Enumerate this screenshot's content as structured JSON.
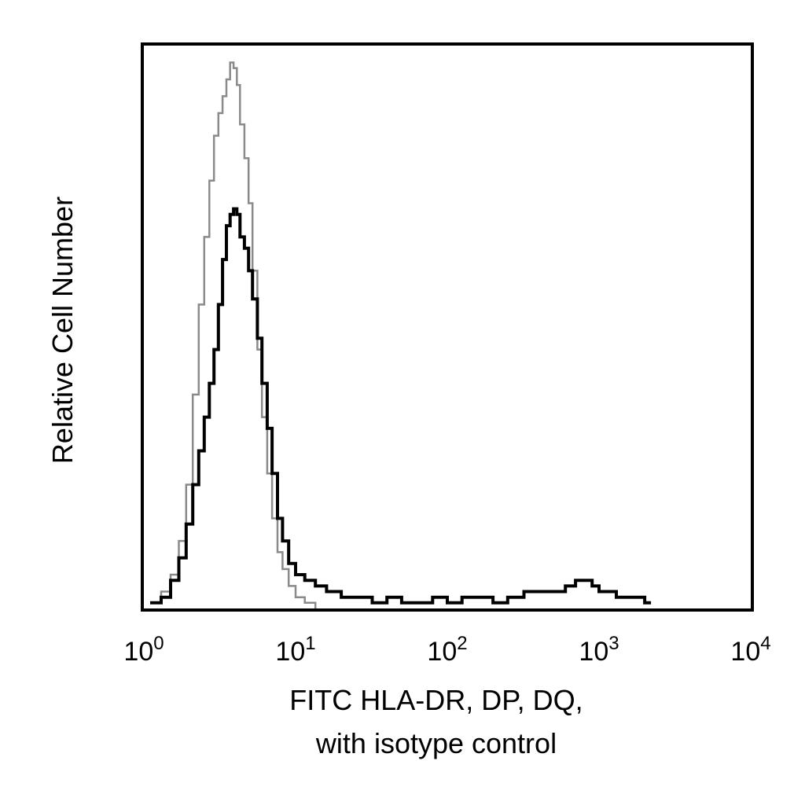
{
  "chart_data": {
    "type": "histogram",
    "title": "",
    "xlabel_lines": [
      "FITC HLA-DR, DP, DQ,",
      "with isotype control"
    ],
    "ylabel": "Relative Cell Number",
    "x_scale": "log",
    "xlim": [
      1,
      10000
    ],
    "ylim": [
      0,
      100
    ],
    "x_ticks": [
      {
        "value": 1,
        "base": "10",
        "exp": "0"
      },
      {
        "value": 10,
        "base": "10",
        "exp": "1"
      },
      {
        "value": 100,
        "base": "10",
        "exp": "2"
      },
      {
        "value": 1000,
        "base": "10",
        "exp": "3"
      },
      {
        "value": 10000,
        "base": "10",
        "exp": "4"
      }
    ],
    "grid": false,
    "legend": "none",
    "series": [
      {
        "role": "isotype control",
        "color": "#8a8a8a",
        "x": [
          1.1,
          1.3,
          1.5,
          1.7,
          1.9,
          2.1,
          2.3,
          2.5,
          2.7,
          2.9,
          3.1,
          3.3,
          3.5,
          3.7,
          3.9,
          4.1,
          4.3,
          4.6,
          4.9,
          5.2,
          5.6,
          6.0,
          6.5,
          7.0,
          7.6,
          8.2,
          9.0,
          10.0,
          11.5,
          13.5
        ],
        "y": [
          1,
          3,
          6,
          12,
          22,
          38,
          54,
          66,
          76,
          84,
          88,
          91,
          94,
          97,
          96,
          93,
          86,
          80,
          72,
          60,
          46,
          34,
          24,
          16,
          10,
          7,
          4,
          2,
          1,
          0
        ]
      },
      {
        "role": "FITC HLA-DR, DP, DQ",
        "color": "#000000",
        "x": [
          1.1,
          1.3,
          1.5,
          1.7,
          1.9,
          2.1,
          2.3,
          2.5,
          2.7,
          2.9,
          3.1,
          3.3,
          3.5,
          3.7,
          3.9,
          4.1,
          4.3,
          4.6,
          4.9,
          5.2,
          5.6,
          6.0,
          6.5,
          7.0,
          7.6,
          8.2,
          9.0,
          10.0,
          11.5,
          13.5,
          16,
          20,
          25,
          32,
          40,
          50,
          65,
          80,
          100,
          125,
          160,
          200,
          250,
          320,
          400,
          500,
          600,
          700,
          800,
          900,
          1000,
          1150,
          1300,
          1500,
          1700,
          2000,
          2200
        ],
        "y": [
          1,
          2,
          5,
          9,
          15,
          22,
          28,
          34,
          40,
          46,
          54,
          62,
          68,
          70,
          71,
          70,
          66,
          64,
          60,
          55,
          48,
          40,
          32,
          24,
          16,
          12,
          8,
          6,
          5,
          4,
          3,
          2,
          2,
          1,
          2,
          1,
          1,
          2,
          1,
          2,
          2,
          1,
          2,
          3,
          3,
          3,
          4,
          5,
          5,
          4,
          3,
          3,
          2,
          2,
          2,
          1,
          1
        ]
      }
    ]
  }
}
